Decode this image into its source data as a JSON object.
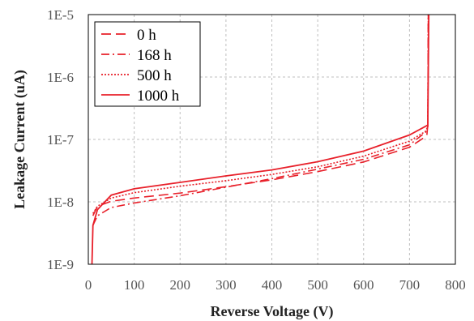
{
  "chart_data": {
    "type": "line",
    "title": "",
    "xlabel": "Reverse Voltage (V)",
    "ylabel": "Leakage Current (uA)",
    "xlim": [
      0,
      800
    ],
    "ylim": [
      1e-09,
      1e-05
    ],
    "yscale": "log",
    "x_ticks": [
      "0",
      "100",
      "200",
      "300",
      "400",
      "500",
      "600",
      "700",
      "800"
    ],
    "y_ticks": [
      "1E-9",
      "1E-8",
      "1E-7",
      "1E-6",
      "1E-5"
    ],
    "grid": "dashed",
    "legend_position": "top-left",
    "series": [
      {
        "name": "0 h",
        "dash": "dashed",
        "color": "#e8202a",
        "points": [
          [
            10,
            6e-09
          ],
          [
            20,
            8.5e-09
          ],
          [
            50,
            1.02e-08
          ],
          [
            100,
            1.15e-08
          ],
          [
            200,
            1.38e-08
          ],
          [
            300,
            1.75e-08
          ],
          [
            400,
            2.25e-08
          ],
          [
            500,
            3.05e-08
          ],
          [
            600,
            4.35e-08
          ],
          [
            700,
            7.5e-08
          ],
          [
            730,
            1.05e-07
          ],
          [
            738,
            1.2e-07
          ],
          [
            740,
            1.7e-07
          ],
          [
            741,
            1e-05
          ]
        ]
      },
      {
        "name": "168 h",
        "dash": "dashdot",
        "color": "#e8202a",
        "points": [
          [
            10,
            4.2e-09
          ],
          [
            20,
            6e-09
          ],
          [
            50,
            8.1e-09
          ],
          [
            100,
            9.6e-09
          ],
          [
            200,
            1.25e-08
          ],
          [
            300,
            1.72e-08
          ],
          [
            400,
            2.35e-08
          ],
          [
            500,
            3.35e-08
          ],
          [
            600,
            4.8e-08
          ],
          [
            700,
            8.2e-08
          ],
          [
            735,
            1.3e-07
          ],
          [
            740,
            1.6e-07
          ],
          [
            741,
            1e-05
          ]
        ]
      },
      {
        "name": "500 h",
        "dash": "dotted",
        "color": "#e8202a",
        "points": [
          [
            10,
            6.5e-09
          ],
          [
            20,
            8.5e-09
          ],
          [
            50,
            1.15e-08
          ],
          [
            100,
            1.4e-08
          ],
          [
            200,
            1.78e-08
          ],
          [
            300,
            2.18e-08
          ],
          [
            400,
            2.75e-08
          ],
          [
            500,
            3.65e-08
          ],
          [
            600,
            5.4e-08
          ],
          [
            700,
            9.4e-08
          ],
          [
            735,
            1.35e-07
          ],
          [
            740,
            1.6e-07
          ],
          [
            741,
            1e-05
          ]
        ]
      },
      {
        "name": "1000 h",
        "dash": "solid",
        "color": "#e8202a",
        "points": [
          [
            8,
            1e-09
          ],
          [
            10,
            4.2e-09
          ],
          [
            20,
            7.5e-09
          ],
          [
            50,
            1.28e-08
          ],
          [
            100,
            1.62e-08
          ],
          [
            200,
            2.05e-08
          ],
          [
            300,
            2.6e-08
          ],
          [
            400,
            3.25e-08
          ],
          [
            500,
            4.4e-08
          ],
          [
            600,
            6.5e-08
          ],
          [
            700,
            1.18e-07
          ],
          [
            740,
            1.7e-07
          ],
          [
            742,
            1e-05
          ]
        ]
      }
    ]
  }
}
